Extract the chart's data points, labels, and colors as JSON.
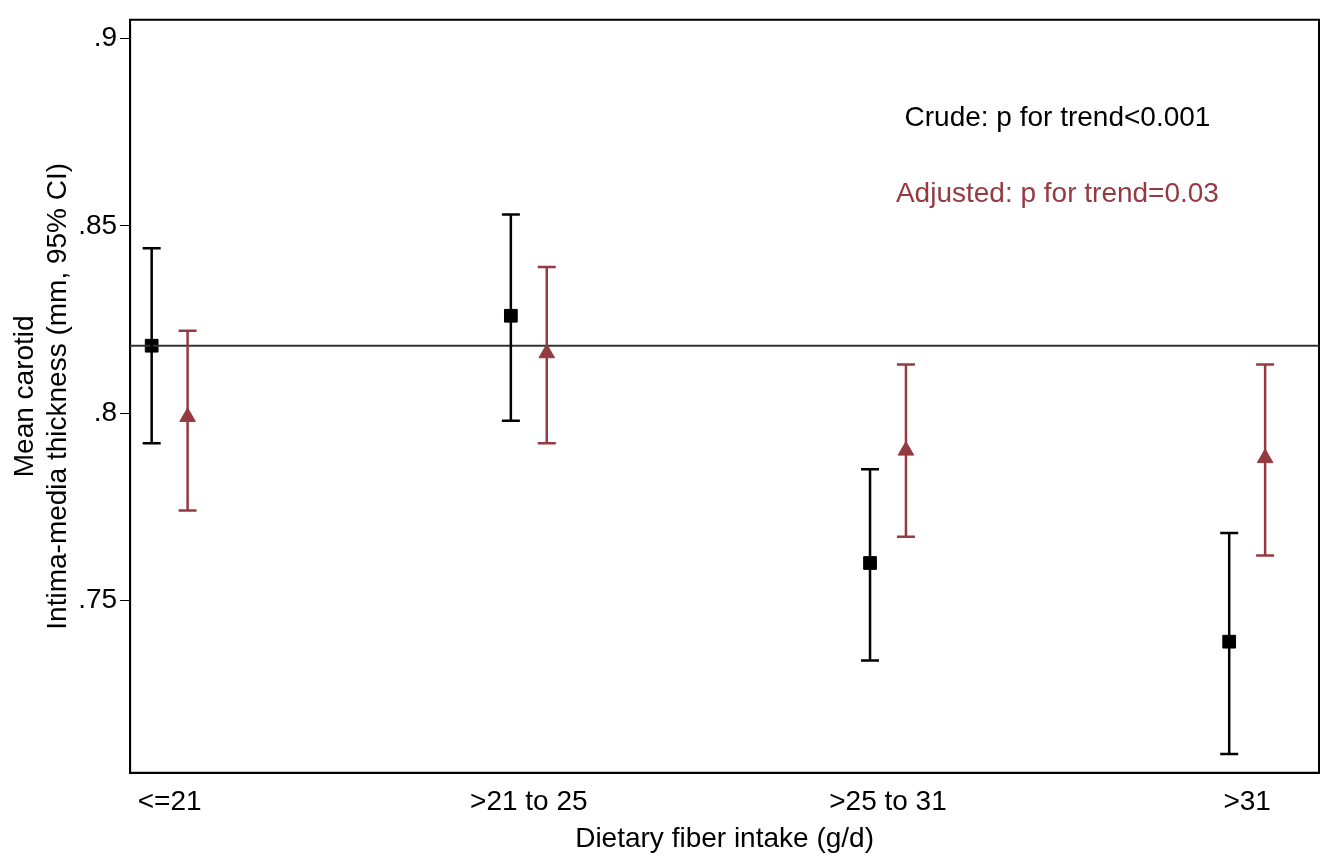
{
  "chart_data": {
    "type": "scatter",
    "xlabel": "Dietary fiber intake (g/d)",
    "ylabel": "Mean carotid\nIntima-media thickness (mm, 95% CI)",
    "categories": [
      "<=21",
      ">21 to 25",
      ">25 to 31",
      ">31"
    ],
    "series": [
      {
        "color": "#000000",
        "marker": "square",
        "values": [
          0.818,
          0.826,
          0.76,
          0.739
        ],
        "errors": [
          [
            0.792,
            0.844
          ],
          [
            0.798,
            0.853
          ],
          [
            0.734,
            0.785
          ],
          [
            0.709,
            0.768
          ]
        ]
      },
      {
        "color": "#943a40",
        "marker": "triangle",
        "values": [
          0.799,
          0.816,
          0.79,
          0.788
        ],
        "errors": [
          [
            0.774,
            0.822
          ],
          [
            0.792,
            0.839
          ],
          [
            0.767,
            0.813
          ],
          [
            0.762,
            0.813
          ]
        ]
      }
    ],
    "ylim": [
      0.704,
      0.905
    ],
    "yticks": [
      {
        "value": 0.75,
        "label": ".75"
      },
      {
        "value": 0.8,
        "label": ".8"
      },
      {
        "value": 0.85,
        "label": ".85"
      },
      {
        "value": 0.9,
        "label": ".9"
      }
    ],
    "ref_lines": [
      {
        "axis": "y",
        "value": 0.818,
        "color": "#333333"
      }
    ],
    "annotations": [
      "Crude: p for trend<0.001",
      "Adjusted: p for trend=0.03"
    ],
    "grid": false,
    "legend": false
  }
}
